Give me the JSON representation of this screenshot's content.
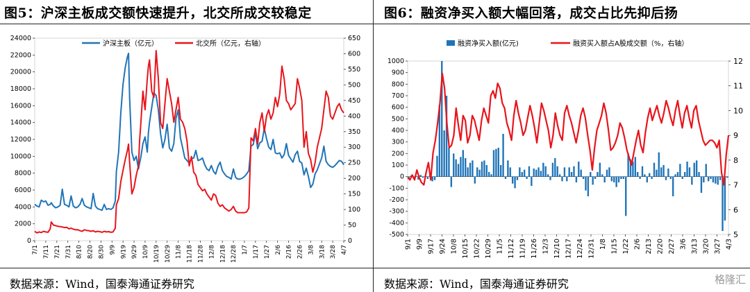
{
  "left": {
    "title": "图5：沪深主板成交额快速提升，北交所成交较稳定",
    "source": "数据来源：Wind，国泰海通证券研究",
    "chart_data": {
      "type": "line",
      "x_ticks": [
        "7/1",
        "7/11",
        "7/21",
        "7/31",
        "8/10",
        "8/20",
        "8/30",
        "9/9",
        "9/19",
        "9/29",
        "10/9",
        "10/19",
        "10/29",
        "11/8",
        "11/18",
        "11/28",
        "12/8",
        "12/18",
        "12/28",
        "1/7",
        "1/17",
        "1/27",
        "2/6",
        "2/16",
        "2/26",
        "3/8",
        "3/18",
        "3/28",
        "4/7"
      ],
      "ylim": [
        0,
        24000
      ],
      "y_ticks": [
        0,
        2000,
        4000,
        6000,
        8000,
        10000,
        12000,
        14000,
        16000,
        18000,
        20000,
        22000,
        24000
      ],
      "y2lim": [
        0,
        650
      ],
      "y2_ticks": [
        0,
        50,
        100,
        150,
        200,
        250,
        300,
        350,
        400,
        450,
        500,
        550,
        600,
        650
      ],
      "legend_position": "top",
      "series": [
        {
          "name": "沪深主板（亿元）",
          "axis": "left",
          "color": "#1f74b8",
          "x": [
            0,
            2,
            4,
            6,
            8,
            10,
            12,
            14,
            15,
            17,
            19,
            21,
            23,
            25,
            27,
            29,
            31,
            33,
            35,
            37,
            39,
            41,
            43,
            45,
            47,
            49,
            51,
            53,
            55,
            57,
            59,
            61,
            63,
            65,
            67,
            69,
            71,
            73,
            74,
            76,
            78,
            80,
            82,
            84,
            85,
            86,
            88,
            90,
            92,
            94,
            95,
            96,
            98,
            100,
            102,
            103,
            104,
            106,
            108,
            110,
            112,
            114,
            116,
            118,
            120,
            122,
            124,
            126,
            128,
            130,
            132,
            134,
            136,
            138,
            140,
            142,
            144,
            146,
            148,
            150,
            152,
            154,
            156,
            158,
            160,
            162,
            164,
            166,
            168,
            170,
            172,
            174,
            176,
            178,
            180,
            182,
            184,
            186,
            188,
            190,
            192,
            194,
            196,
            198,
            200,
            202,
            204,
            206,
            208,
            210,
            212,
            214,
            216,
            218,
            220,
            222,
            224,
            226,
            228,
            230,
            232,
            234,
            236,
            238,
            240,
            242,
            244,
            246,
            248,
            250,
            252,
            254,
            256,
            258,
            260,
            262,
            264,
            266,
            268,
            270,
            272,
            274,
            276,
            278,
            280
          ],
          "values": [
            4300,
            4100,
            4000,
            4800,
            4600,
            4700,
            4200,
            4300,
            4500,
            4100,
            3900,
            4000,
            4200,
            6100,
            4300,
            4200,
            4000,
            5300,
            4100,
            3900,
            4000,
            4300,
            5000,
            4200,
            4000,
            3900,
            3800,
            5600,
            4100,
            3800,
            3700,
            3600,
            4300,
            3700,
            3800,
            3700,
            3900,
            4700,
            8200,
            10500,
            15200,
            18500,
            20500,
            21800,
            22200,
            16800,
            10500,
            9500,
            10000,
            8500,
            9200,
            9800,
            11500,
            12300,
            10500,
            12800,
            14000,
            15800,
            17500,
            17200,
            15500,
            12700,
            11000,
            12000,
            13800,
            11000,
            10600,
            11500,
            14500,
            15500,
            12200,
            11000,
            9800,
            9500,
            9200,
            9700,
            9800,
            10700,
            9500,
            9600,
            9800,
            9000,
            8500,
            8300,
            8900,
            8200,
            7900,
            8800,
            9300,
            8300,
            7900,
            7600,
            7500,
            7300,
            8500,
            7500,
            7300,
            7300,
            7400,
            7600,
            7900,
            8300,
            11200,
            11400,
            12800,
            10900,
            11600,
            11800,
            13300,
            12100,
            11100,
            10800,
            12000,
            10400,
            10300,
            10400,
            9800,
            10200,
            11500,
            10100,
            9700,
            9300,
            10200,
            10600,
            9400,
            9200,
            7800,
            8600,
            7600,
            6300,
            6700,
            7900,
            8400,
            9100,
            9800,
            11200,
            9400,
            9000,
            8800,
            8700,
            8900,
            9200,
            9500,
            9400,
            9000
          ]
        },
        {
          "name": "北交所（亿元，右轴）",
          "axis": "right",
          "color": "#e8141b",
          "x": [
            0,
            2,
            4,
            6,
            8,
            10,
            12,
            14,
            15,
            17,
            19,
            21,
            23,
            25,
            27,
            29,
            31,
            33,
            35,
            37,
            39,
            41,
            43,
            45,
            47,
            49,
            51,
            53,
            55,
            57,
            59,
            61,
            63,
            65,
            67,
            69,
            71,
            73,
            74,
            76,
            78,
            80,
            82,
            84,
            85,
            86,
            88,
            90,
            92,
            94,
            95,
            96,
            98,
            100,
            102,
            103,
            104,
            106,
            108,
            110,
            112,
            114,
            116,
            118,
            120,
            122,
            124,
            126,
            128,
            130,
            132,
            134,
            136,
            138,
            140,
            142,
            144,
            146,
            148,
            150,
            152,
            154,
            156,
            158,
            160,
            162,
            164,
            166,
            168,
            170,
            172,
            174,
            176,
            178,
            180,
            182,
            184,
            186,
            188,
            190,
            192,
            194,
            196,
            198,
            200,
            202,
            204,
            206,
            208,
            210,
            212,
            214,
            216,
            218,
            220,
            222,
            224,
            226,
            228,
            230,
            232,
            234,
            236,
            238,
            240,
            242,
            244,
            246,
            248,
            250,
            252,
            254,
            256,
            258,
            260,
            262,
            264,
            266,
            268,
            270,
            272,
            274,
            276,
            278,
            280
          ],
          "values": [
            30,
            25,
            28,
            26,
            30,
            28,
            27,
            38,
            60,
            50,
            48,
            46,
            45,
            44,
            42,
            43,
            38,
            40,
            37,
            35,
            35,
            32,
            30,
            35,
            33,
            32,
            30,
            32,
            28,
            30,
            29,
            27,
            30,
            28,
            29,
            27,
            28,
            40,
            115,
            135,
            190,
            225,
            260,
            290,
            310,
            250,
            150,
            170,
            210,
            240,
            320,
            370,
            480,
            420,
            520,
            560,
            580,
            480,
            460,
            610,
            520,
            380,
            360,
            440,
            520,
            480,
            440,
            380,
            420,
            460,
            390,
            380,
            360,
            320,
            240,
            270,
            220,
            210,
            180,
            170,
            160,
            165,
            150,
            140,
            130,
            150,
            145,
            120,
            110,
            115,
            105,
            100,
            95,
            100,
            110,
            95,
            90,
            90,
            90,
            90,
            92,
            105,
            330,
            320,
            360,
            310,
            380,
            410,
            350,
            400,
            420,
            390,
            410,
            460,
            430,
            470,
            560,
            520,
            450,
            440,
            420,
            430,
            440,
            520,
            490,
            450,
            300,
            350,
            280,
            260,
            220,
            250,
            300,
            330,
            360,
            420,
            480,
            460,
            400,
            390,
            410,
            430,
            440,
            420,
            410
          ]
        }
      ]
    }
  },
  "right": {
    "title": "图6：融资净买入额大幅回落，成交占比先抑后扬",
    "source": "数据来源：Wind，国泰海通证券研究",
    "watermark": "格隆汇",
    "chart_data": {
      "type": "bar",
      "x_ticks": [
        "9/1",
        "9/9",
        "9/17",
        "9/24",
        "10/8",
        "10/15",
        "10/22",
        "10/29",
        "11/5",
        "11/12",
        "11/19",
        "11/26",
        "12/3",
        "12/10",
        "12/17",
        "12/24",
        "12/31",
        "1/8",
        "1/15",
        "1/22",
        "2/6",
        "2/13",
        "2/20",
        "2/27",
        "3/6",
        "3/13",
        "3/20",
        "3/27",
        "4/3"
      ],
      "ylim": [
        -500,
        1000
      ],
      "y_ticks": [
        -500,
        -400,
        -300,
        -200,
        -100,
        0,
        100,
        200,
        300,
        400,
        500,
        600,
        700,
        800,
        900,
        1000
      ],
      "y2lim": [
        5,
        12
      ],
      "y2_ticks": [
        5,
        6,
        7,
        8,
        9,
        10,
        11,
        12
      ],
      "legend_position": "top",
      "series": [
        {
          "name": "融资净买入额(亿元)",
          "axis": "left",
          "color": "#1f74b8",
          "kind": "bar",
          "values": [
            -20,
            10,
            -15,
            5,
            -25,
            15,
            -10,
            5,
            -20,
            20,
            -40,
            -30,
            180,
            620,
            1000,
            400,
            700,
            250,
            -90,
            200,
            150,
            110,
            170,
            230,
            160,
            80,
            120,
            140,
            -60,
            80,
            60,
            130,
            140,
            100,
            40,
            20,
            230,
            240,
            250,
            100,
            370,
            -20,
            140,
            80,
            -60,
            -100,
            -30,
            80,
            40,
            60,
            -20,
            90,
            -80,
            70,
            60,
            80,
            50,
            120,
            90,
            20,
            -30,
            120,
            160,
            90,
            20,
            -40,
            80,
            -40,
            80,
            40,
            90,
            -50,
            130,
            60,
            -20,
            -120,
            -170,
            40,
            -70,
            -20,
            40,
            120,
            20,
            -50,
            60,
            80,
            -40,
            -50,
            -90,
            -50,
            -20,
            -20,
            -340,
            200,
            150,
            130,
            170,
            40,
            -20,
            90,
            20,
            -50,
            30,
            -20,
            120,
            60,
            210,
            80,
            100,
            -30,
            70,
            -20,
            -170,
            20,
            40,
            110,
            -20,
            40,
            130,
            80,
            -70,
            120,
            140,
            40,
            -140,
            -50,
            110,
            -40,
            -20,
            -50,
            -60,
            -70,
            -30,
            -470,
            -380,
            -10
          ]
        },
        {
          "name": "融资买入额占A股成交额（%，右轴）",
          "axis": "right",
          "color": "#e8141b",
          "kind": "line",
          "values": [
            7.3,
            7.2,
            7.4,
            7.2,
            7.6,
            7.3,
            7.1,
            7.0,
            7.5,
            7.9,
            7.2,
            8.3,
            8.8,
            9.5,
            10.3,
            11.5,
            10.9,
            9.5,
            8.5,
            8.6,
            9.0,
            10.1,
            9.4,
            8.8,
            9.8,
            9.6,
            8.7,
            9.0,
            9.8,
            9.6,
            9.2,
            8.8,
            9.6,
            10.1,
            9.8,
            9.5,
            10.6,
            10.8,
            10.5,
            11.1,
            10.9,
            10.3,
            10.1,
            9.5,
            9.2,
            8.8,
            9.8,
            10.4,
            9.9,
            9.5,
            9.0,
            9.2,
            9.7,
            10.2,
            9.8,
            9.3,
            8.7,
            9.5,
            10.3,
            10.0,
            9.6,
            9.2,
            8.5,
            9.0,
            9.9,
            9.4,
            9.0,
            8.8,
            9.9,
            10.2,
            9.8,
            9.5,
            9.1,
            8.7,
            9.2,
            9.8,
            10.1,
            9.7,
            9.0,
            8.4,
            7.6,
            8.5,
            9.2,
            9.5,
            9.8,
            10.3,
            9.9,
            9.2,
            8.4,
            8.5,
            8.7,
            9.0,
            9.5,
            9.3,
            8.9,
            8.4,
            8.1,
            7.8,
            8.3,
            8.8,
            9.2,
            8.6,
            8.3,
            9.1,
            9.7,
            10.1,
            9.6,
            9.9,
            10.2,
            9.8,
            9.5,
            9.9,
            10.4,
            10.1,
            9.7,
            9.4,
            10.0,
            10.4,
            9.8,
            9.3,
            9.9,
            10.2,
            9.7,
            9.3,
            10.0,
            10.2,
            9.6,
            9.2,
            8.8,
            8.6,
            8.7,
            8.8,
            8.8,
            8.7,
            8.5,
            8.8,
            7.5,
            7.0,
            8.2,
            9.0
          ]
        }
      ]
    }
  }
}
